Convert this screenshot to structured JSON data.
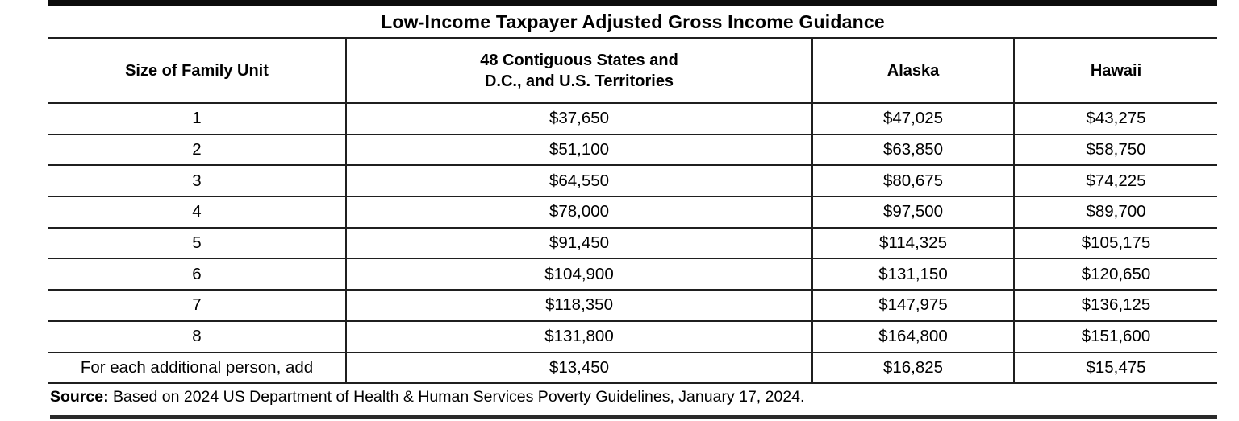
{
  "title": "Low-Income Taxpayer Adjusted Gross Income Guidance",
  "colors": {
    "rule": "#1f1f1f",
    "thick_bar": "#0d0d0d",
    "text": "#000000",
    "background": "#ffffff"
  },
  "table": {
    "header": {
      "family_unit": "Size of Family Unit",
      "states_line1": "48 Contiguous States and",
      "states_line2": "D.C., and U.S. Territories",
      "alaska": "Alaska",
      "hawaii": "Hawaii"
    },
    "rows": [
      [
        "1",
        "$37,650",
        "$47,025",
        "$43,275"
      ],
      [
        "2",
        "$51,100",
        "$63,850",
        "$58,750"
      ],
      [
        "3",
        "$64,550",
        "$80,675",
        "$74,225"
      ],
      [
        "4",
        "$78,000",
        "$97,500",
        "$89,700"
      ],
      [
        "5",
        "$91,450",
        "$114,325",
        "$105,175"
      ],
      [
        "6",
        "$104,900",
        "$131,150",
        "$120,650"
      ],
      [
        "7",
        "$118,350",
        "$147,975",
        "$136,125"
      ],
      [
        "8",
        "$131,800",
        "$164,800",
        "$151,600"
      ],
      [
        "For each additional person, add",
        "$13,450",
        "$16,825",
        "$15,475"
      ]
    ]
  },
  "source": {
    "label": "Source:",
    "text": "Based on 2024 US Department of Health & Human Services Poverty Guidelines, January 17, 2024."
  }
}
